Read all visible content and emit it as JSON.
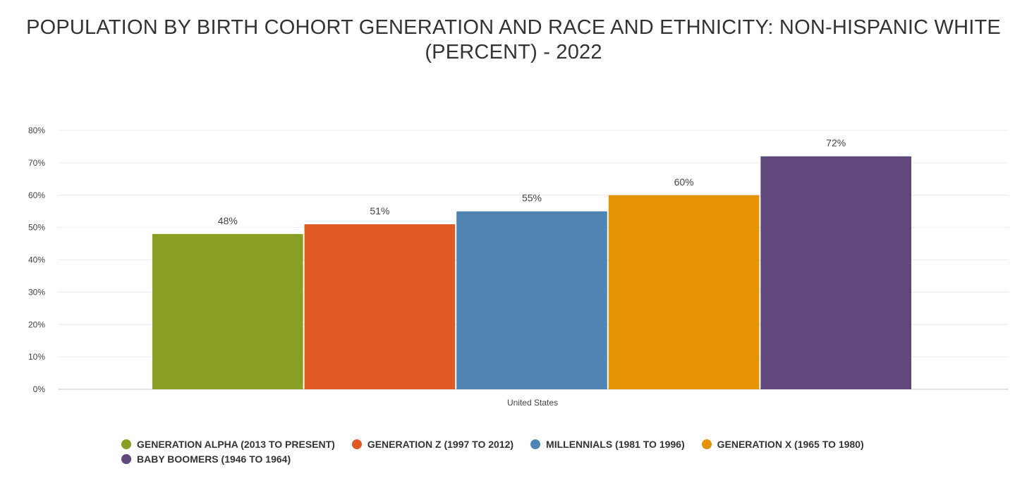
{
  "title_line1": "POPULATION BY BIRTH COHORT GENERATION AND RACE AND ETHNICITY: NON-HISPANIC WHITE",
  "title_line2": "(PERCENT) - 2022",
  "chart_data": {
    "type": "bar",
    "title": "POPULATION BY BIRTH COHORT GENERATION AND RACE AND ETHNICITY: NON-HISPANIC WHITE (PERCENT) - 2022",
    "categories": [
      "United States"
    ],
    "xlabel": "",
    "ylabel": "",
    "ylim": [
      0,
      80
    ],
    "yticks": [
      0,
      10,
      20,
      30,
      40,
      50,
      60,
      70,
      80
    ],
    "ytick_labels": [
      "0%",
      "10%",
      "20%",
      "30%",
      "40%",
      "50%",
      "60%",
      "70%",
      "80%"
    ],
    "grid": true,
    "legend_position": "bottom",
    "series": [
      {
        "name": "GENERATION ALPHA (2013 TO PRESENT)",
        "values": [
          48
        ],
        "label": "48%",
        "color": "#8a9e24"
      },
      {
        "name": "GENERATION Z (1997 TO 2012)",
        "values": [
          51
        ],
        "label": "51%",
        "color": "#dd5a23"
      },
      {
        "name": "MILLENNIALS (1981 TO 1996)",
        "values": [
          55
        ],
        "label": "55%",
        "color": "#5085b3"
      },
      {
        "name": "GENERATION X (1965 TO 1980)",
        "values": [
          60
        ],
        "label": "60%",
        "color": "#e59203"
      },
      {
        "name": "BABY BOOMERS (1946 TO 1964)",
        "values": [
          72
        ],
        "label": "72%",
        "color": "#5d477b"
      }
    ]
  }
}
